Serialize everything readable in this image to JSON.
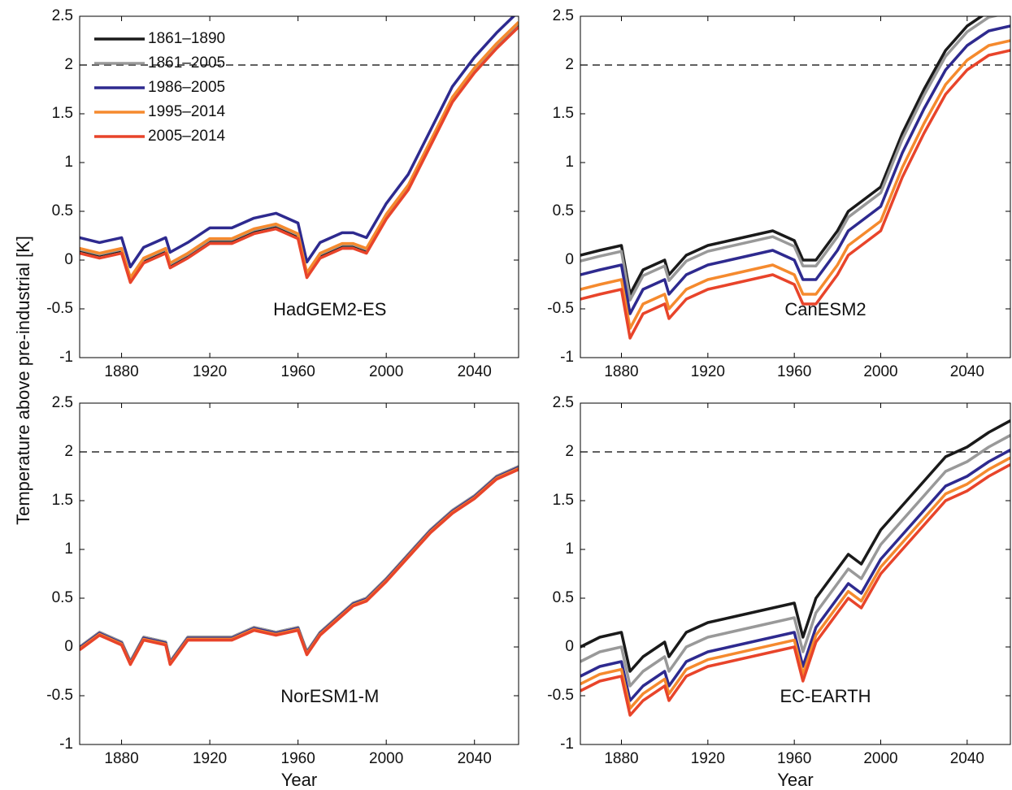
{
  "ylabel": "Temperature above pre-industrial  [K]",
  "xlabel": "Year",
  "chart_data": [
    {
      "type": "line",
      "annotation": "HadGEM2-ES",
      "legend": "upper left",
      "reference_line": 2,
      "x": [
        1861,
        1870,
        1880,
        1884,
        1890,
        1900,
        1902,
        1910,
        1920,
        1930,
        1940,
        1950,
        1960,
        1964,
        1970,
        1980,
        1985,
        1991,
        2000,
        2010,
        2020,
        2030,
        2040,
        2050,
        2060
      ],
      "xlim": [
        1861,
        2060
      ],
      "xticks": [
        1880,
        1920,
        1960,
        2000,
        2040
      ],
      "ylim": [
        -1,
        2.5
      ],
      "yticks": [
        -1,
        -0.5,
        0,
        0.5,
        1,
        1.5,
        2,
        2.5
      ],
      "series": [
        {
          "name": "1861–1890",
          "color": "#1a1a1a",
          "values": [
            0.1,
            0.05,
            0.1,
            -0.2,
            0.0,
            0.1,
            -0.05,
            0.05,
            0.2,
            0.2,
            0.3,
            0.35,
            0.25,
            -0.15,
            0.05,
            0.15,
            0.15,
            0.1,
            0.45,
            0.75,
            1.2,
            1.65,
            1.95,
            2.2,
            2.42
          ]
        },
        {
          "name": "1861–2005",
          "color": "#999999",
          "values": [
            0.11,
            0.06,
            0.11,
            -0.19,
            0.01,
            0.11,
            -0.04,
            0.06,
            0.21,
            0.21,
            0.31,
            0.36,
            0.26,
            -0.14,
            0.06,
            0.16,
            0.16,
            0.11,
            0.46,
            0.76,
            1.21,
            1.66,
            1.96,
            2.21,
            2.43
          ]
        },
        {
          "name": "1986–2005",
          "color": "#2e2a8f",
          "values": [
            0.23,
            0.18,
            0.23,
            -0.07,
            0.13,
            0.23,
            0.08,
            0.18,
            0.33,
            0.33,
            0.43,
            0.48,
            0.38,
            -0.02,
            0.18,
            0.28,
            0.28,
            0.23,
            0.58,
            0.88,
            1.33,
            1.78,
            2.08,
            2.33,
            2.55
          ]
        },
        {
          "name": "1995–2014",
          "color": "#f58a2e",
          "values": [
            0.12,
            0.07,
            0.12,
            -0.18,
            0.02,
            0.12,
            -0.03,
            0.07,
            0.22,
            0.22,
            0.32,
            0.37,
            0.27,
            -0.13,
            0.07,
            0.17,
            0.17,
            0.12,
            0.47,
            0.77,
            1.22,
            1.67,
            1.97,
            2.22,
            2.44
          ]
        },
        {
          "name": "2005–2014",
          "color": "#e8442a",
          "values": [
            0.07,
            0.02,
            0.07,
            -0.23,
            -0.03,
            0.07,
            -0.08,
            0.02,
            0.17,
            0.17,
            0.27,
            0.32,
            0.22,
            -0.18,
            0.02,
            0.12,
            0.12,
            0.07,
            0.42,
            0.72,
            1.17,
            1.62,
            1.92,
            2.17,
            2.39
          ]
        }
      ]
    },
    {
      "type": "line",
      "annotation": "CanESM2",
      "reference_line": 2,
      "x": [
        1861,
        1870,
        1880,
        1884,
        1890,
        1900,
        1902,
        1910,
        1920,
        1930,
        1940,
        1950,
        1960,
        1964,
        1970,
        1980,
        1985,
        1991,
        2000,
        2010,
        2020,
        2030,
        2040,
        2050,
        2060
      ],
      "xlim": [
        1861,
        2060
      ],
      "xticks": [
        1880,
        1920,
        1960,
        2000,
        2040
      ],
      "ylim": [
        -1,
        2.5
      ],
      "yticks": [
        -1,
        -0.5,
        0,
        0.5,
        1,
        1.5,
        2,
        2.5
      ],
      "series": [
        {
          "name": "1861–1890",
          "color": "#1a1a1a",
          "values": [
            0.05,
            0.1,
            0.15,
            -0.35,
            -0.1,
            0.0,
            -0.15,
            0.05,
            0.15,
            0.2,
            0.25,
            0.3,
            0.2,
            0.0,
            0.0,
            0.3,
            0.5,
            0.6,
            0.75,
            1.3,
            1.75,
            2.15,
            2.4,
            2.55,
            2.6
          ]
        },
        {
          "name": "1861–2005",
          "color": "#999999",
          "values": [
            -0.01,
            0.04,
            0.09,
            -0.41,
            -0.16,
            -0.06,
            -0.21,
            -0.01,
            0.09,
            0.14,
            0.19,
            0.24,
            0.14,
            -0.06,
            -0.06,
            0.24,
            0.44,
            0.54,
            0.69,
            1.24,
            1.69,
            2.09,
            2.34,
            2.49,
            2.54
          ]
        },
        {
          "name": "1986–2005",
          "color": "#2e2a8f",
          "values": [
            -0.15,
            -0.1,
            -0.05,
            -0.55,
            -0.3,
            -0.2,
            -0.35,
            -0.15,
            -0.05,
            0.0,
            0.05,
            0.1,
            0.0,
            -0.2,
            -0.2,
            0.1,
            0.3,
            0.4,
            0.55,
            1.1,
            1.55,
            1.95,
            2.2,
            2.35,
            2.4
          ]
        },
        {
          "name": "1995–2014",
          "color": "#f58a2e",
          "values": [
            -0.3,
            -0.25,
            -0.2,
            -0.7,
            -0.45,
            -0.35,
            -0.5,
            -0.3,
            -0.2,
            -0.15,
            -0.1,
            -0.05,
            -0.15,
            -0.35,
            -0.35,
            -0.05,
            0.15,
            0.25,
            0.4,
            0.95,
            1.4,
            1.8,
            2.05,
            2.2,
            2.25
          ]
        },
        {
          "name": "2005–2014",
          "color": "#e8442a",
          "values": [
            -0.4,
            -0.35,
            -0.3,
            -0.8,
            -0.55,
            -0.45,
            -0.6,
            -0.4,
            -0.3,
            -0.25,
            -0.2,
            -0.15,
            -0.25,
            -0.45,
            -0.45,
            -0.15,
            0.05,
            0.15,
            0.3,
            0.85,
            1.3,
            1.7,
            1.95,
            2.1,
            2.15
          ]
        }
      ]
    },
    {
      "type": "line",
      "annotation": "NorESM1-M",
      "reference_line": 2,
      "x": [
        1861,
        1870,
        1880,
        1884,
        1890,
        1900,
        1902,
        1910,
        1920,
        1930,
        1940,
        1950,
        1960,
        1964,
        1970,
        1980,
        1985,
        1991,
        2000,
        2010,
        2020,
        2030,
        2040,
        2050,
        2060
      ],
      "xlim": [
        1861,
        2060
      ],
      "xticks": [
        1880,
        1920,
        1960,
        2000,
        2040
      ],
      "ylim": [
        -1,
        2.5
      ],
      "yticks": [
        -1,
        -0.5,
        0,
        0.5,
        1,
        1.5,
        2,
        2.5
      ],
      "series": [
        {
          "name": "1861–1890",
          "color": "#1a1a1a",
          "values": [
            0.0,
            0.15,
            0.05,
            -0.15,
            0.1,
            0.05,
            -0.15,
            0.1,
            0.1,
            0.1,
            0.2,
            0.15,
            0.2,
            -0.05,
            0.15,
            0.35,
            0.45,
            0.5,
            0.7,
            0.95,
            1.2,
            1.4,
            1.55,
            1.75,
            1.85
          ]
        },
        {
          "name": "1861–2005",
          "color": "#999999",
          "values": [
            0.0,
            0.15,
            0.05,
            -0.15,
            0.1,
            0.05,
            -0.15,
            0.1,
            0.1,
            0.1,
            0.2,
            0.15,
            0.2,
            -0.05,
            0.15,
            0.35,
            0.45,
            0.5,
            0.7,
            0.95,
            1.2,
            1.4,
            1.55,
            1.75,
            1.85
          ]
        },
        {
          "name": "1986–2005",
          "color": "#2e2a8f",
          "values": [
            -0.01,
            0.14,
            0.04,
            -0.16,
            0.09,
            0.04,
            -0.16,
            0.09,
            0.09,
            0.09,
            0.19,
            0.14,
            0.19,
            -0.06,
            0.14,
            0.34,
            0.44,
            0.49,
            0.69,
            0.94,
            1.19,
            1.39,
            1.54,
            1.74,
            1.84
          ]
        },
        {
          "name": "1995–2014",
          "color": "#f58a2e",
          "values": [
            -0.02,
            0.13,
            0.03,
            -0.17,
            0.08,
            0.03,
            -0.17,
            0.08,
            0.08,
            0.08,
            0.18,
            0.13,
            0.18,
            -0.07,
            0.13,
            0.33,
            0.43,
            0.48,
            0.68,
            0.93,
            1.18,
            1.38,
            1.53,
            1.73,
            1.83
          ]
        },
        {
          "name": "2005–2014",
          "color": "#e8442a",
          "values": [
            -0.03,
            0.12,
            0.02,
            -0.18,
            0.07,
            0.02,
            -0.18,
            0.07,
            0.07,
            0.07,
            0.17,
            0.12,
            0.17,
            -0.08,
            0.12,
            0.32,
            0.42,
            0.47,
            0.67,
            0.92,
            1.17,
            1.37,
            1.52,
            1.72,
            1.82
          ]
        }
      ]
    },
    {
      "type": "line",
      "annotation": "EC-EARTH",
      "reference_line": 2,
      "x": [
        1861,
        1870,
        1880,
        1884,
        1890,
        1900,
        1902,
        1910,
        1920,
        1930,
        1940,
        1950,
        1960,
        1964,
        1970,
        1980,
        1985,
        1991,
        2000,
        2010,
        2020,
        2030,
        2040,
        2050,
        2060
      ],
      "xlim": [
        1861,
        2060
      ],
      "xticks": [
        1880,
        1920,
        1960,
        2000,
        2040
      ],
      "ylim": [
        -1,
        2.5
      ],
      "yticks": [
        -1,
        -0.5,
        0,
        0.5,
        1,
        1.5,
        2,
        2.5
      ],
      "series": [
        {
          "name": "1861–1890",
          "color": "#1a1a1a",
          "values": [
            0.0,
            0.1,
            0.15,
            -0.25,
            -0.1,
            0.05,
            -0.1,
            0.15,
            0.25,
            0.3,
            0.35,
            0.4,
            0.45,
            0.1,
            0.5,
            0.8,
            0.95,
            0.85,
            1.2,
            1.45,
            1.7,
            1.95,
            2.05,
            2.2,
            2.32
          ]
        },
        {
          "name": "1861–2005",
          "color": "#999999",
          "values": [
            -0.15,
            -0.05,
            0.0,
            -0.4,
            -0.25,
            -0.1,
            -0.25,
            0.0,
            0.1,
            0.15,
            0.2,
            0.25,
            0.3,
            -0.05,
            0.35,
            0.65,
            0.8,
            0.7,
            1.05,
            1.3,
            1.55,
            1.8,
            1.9,
            2.05,
            2.17
          ]
        },
        {
          "name": "1986–2005",
          "color": "#2e2a8f",
          "values": [
            -0.3,
            -0.2,
            -0.15,
            -0.55,
            -0.4,
            -0.25,
            -0.4,
            -0.15,
            -0.05,
            0.0,
            0.05,
            0.1,
            0.15,
            -0.2,
            0.2,
            0.5,
            0.65,
            0.55,
            0.9,
            1.15,
            1.4,
            1.65,
            1.75,
            1.9,
            2.02
          ]
        },
        {
          "name": "1995–2014",
          "color": "#f58a2e",
          "values": [
            -0.38,
            -0.28,
            -0.23,
            -0.63,
            -0.48,
            -0.33,
            -0.48,
            -0.23,
            -0.13,
            -0.08,
            -0.03,
            0.02,
            0.07,
            -0.28,
            0.12,
            0.42,
            0.57,
            0.47,
            0.82,
            1.07,
            1.32,
            1.57,
            1.67,
            1.82,
            1.94
          ]
        },
        {
          "name": "2005–2014",
          "color": "#e8442a",
          "values": [
            -0.45,
            -0.35,
            -0.3,
            -0.7,
            -0.55,
            -0.4,
            -0.55,
            -0.3,
            -0.2,
            -0.15,
            -0.1,
            -0.05,
            0.0,
            -0.35,
            0.05,
            0.35,
            0.5,
            0.4,
            0.75,
            1.0,
            1.25,
            1.5,
            1.6,
            1.75,
            1.87
          ]
        }
      ]
    }
  ]
}
